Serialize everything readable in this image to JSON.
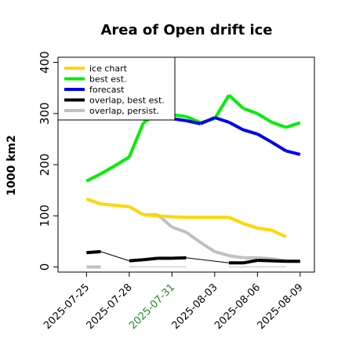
{
  "chart_data": {
    "type": "line",
    "title": "Area of Open drift ice",
    "ylabel": "1000 km2",
    "xlabel": "",
    "ylim": [
      -10,
      410
    ],
    "xlim": [
      "2025-07-23",
      "2025-08-10"
    ],
    "yticks": [
      0,
      100,
      200,
      300,
      400
    ],
    "xticks": [
      "2025-07-25",
      "2025-07-28",
      "2025-07-31",
      "2025-08-03",
      "2025-08-06",
      "2025-08-09"
    ],
    "highlight_tick": "2025-07-31",
    "highlight_color": "#228b22",
    "grid": false,
    "legend_position": "top-left",
    "series": [
      {
        "name": "overlap, persist.",
        "color": "#c0c0c0",
        "segments": [
          [
            [
              "2025-07-25",
              0
            ],
            [
              "2025-07-26",
              0
            ]
          ],
          [
            [
              "2025-07-28",
              0
            ],
            [
              "2025-08-01",
              0
            ]
          ],
          [
            [
              "2025-07-29",
              102
            ],
            [
              "2025-07-30",
              102
            ],
            [
              "2025-07-31",
              78
            ],
            [
              "2025-08-01",
              68
            ],
            [
              "2025-08-02",
              48
            ],
            [
              "2025-08-03",
              30
            ],
            [
              "2025-08-04",
              22
            ],
            [
              "2025-08-05",
              18
            ],
            [
              "2025-08-06",
              18
            ],
            [
              "2025-08-07",
              16
            ],
            [
              "2025-08-08",
              12
            ],
            [
              "2025-08-09",
              11
            ]
          ],
          [
            [
              "2025-08-04",
              0
            ],
            [
              "2025-08-08",
              0
            ]
          ]
        ]
      },
      {
        "name": "ice chart",
        "color": "#ffd700",
        "segments": [
          [
            [
              "2025-07-25",
              133
            ],
            [
              "2025-07-26",
              123
            ],
            [
              "2025-07-28",
              118
            ],
            [
              "2025-07-29",
              102
            ],
            [
              "2025-07-30",
              100
            ],
            [
              "2025-07-31",
              98
            ],
            [
              "2025-08-01",
              97
            ],
            [
              "2025-08-04",
              97
            ],
            [
              "2025-08-05",
              85
            ],
            [
              "2025-08-06",
              76
            ],
            [
              "2025-08-07",
              72
            ],
            [
              "2025-08-08",
              59
            ]
          ]
        ]
      },
      {
        "name": "best est.",
        "color": "#00ee00",
        "segments": [
          [
            [
              "2025-07-25",
              168
            ],
            [
              "2025-07-26",
              182
            ],
            [
              "2025-07-27",
              198
            ],
            [
              "2025-07-28",
              215
            ],
            [
              "2025-07-29",
              282
            ],
            [
              "2025-07-30",
              300
            ],
            [
              "2025-07-31",
              298
            ],
            [
              "2025-08-01",
              294
            ],
            [
              "2025-08-02",
              282
            ],
            [
              "2025-08-03",
              290
            ],
            [
              "2025-08-04",
              336
            ],
            [
              "2025-08-05",
              310
            ],
            [
              "2025-08-06",
              300
            ],
            [
              "2025-08-07",
              283
            ],
            [
              "2025-08-08",
              273
            ],
            [
              "2025-08-09",
              282
            ]
          ]
        ]
      },
      {
        "name": "forecast",
        "color": "#0000ee",
        "segments": [
          [
            [
              "2025-07-31",
              290
            ],
            [
              "2025-08-01",
              286
            ],
            [
              "2025-08-02",
              280
            ],
            [
              "2025-08-03",
              292
            ],
            [
              "2025-08-04",
              283
            ],
            [
              "2025-08-05",
              268
            ],
            [
              "2025-08-06",
              260
            ],
            [
              "2025-08-07",
              244
            ],
            [
              "2025-08-08",
              227
            ],
            [
              "2025-08-09",
              220
            ]
          ]
        ]
      },
      {
        "name": "overlap, best est.",
        "color": "#000000",
        "segments": [
          [
            [
              "2025-07-25",
              28
            ],
            [
              "2025-07-26",
              30
            ],
            [
              "2025-07-28",
              12
            ],
            [
              "2025-07-29",
              14
            ],
            [
              "2025-07-30",
              17
            ],
            [
              "2025-07-31",
              17
            ],
            [
              "2025-08-01",
              18
            ],
            [
              "2025-08-04",
              8
            ],
            [
              "2025-08-05",
              8
            ],
            [
              "2025-08-06",
              13
            ],
            [
              "2025-08-07",
              12
            ],
            [
              "2025-08-08",
              11
            ],
            [
              "2025-08-09",
              11
            ]
          ]
        ]
      }
    ],
    "legend": [
      {
        "label": "ice chart",
        "color": "#ffd700"
      },
      {
        "label": "best est.",
        "color": "#00ee00"
      },
      {
        "label": "forecast",
        "color": "#0000ee"
      },
      {
        "label": "overlap, best est.",
        "color": "#000000"
      },
      {
        "label": "overlap, persist.",
        "color": "#c0c0c0"
      }
    ]
  }
}
